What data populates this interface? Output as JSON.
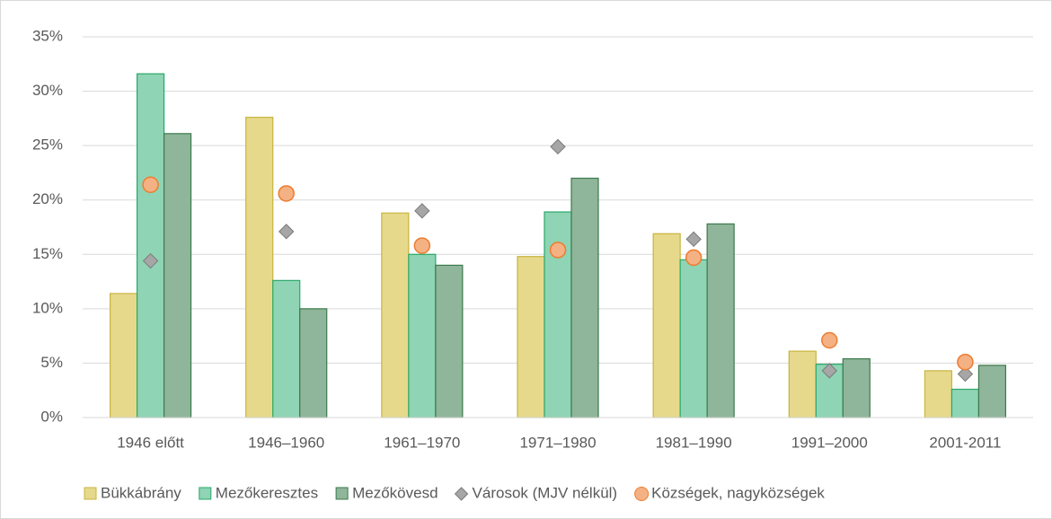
{
  "chart_data": {
    "type": "bar",
    "categories": [
      "1946 előtt",
      "1946–1960",
      "1961–1970",
      "1971–1980",
      "1981–1990",
      "1991–2000",
      "2001-2011"
    ],
    "series": [
      {
        "name": "Bükkábrány",
        "type": "bar",
        "color": "#e6d98c",
        "stroke": "#c9b43e",
        "values": [
          11.4,
          27.6,
          18.8,
          14.8,
          16.9,
          6.1,
          4.3
        ]
      },
      {
        "name": "Mezőkeresztes",
        "type": "bar",
        "color": "#8fd4b4",
        "stroke": "#2aa86a",
        "values": [
          31.6,
          12.6,
          15.0,
          18.9,
          14.5,
          4.9,
          2.6
        ]
      },
      {
        "name": "Mezőkövesd",
        "type": "bar",
        "color": "#8fb59a",
        "stroke": "#3d7a4d",
        "values": [
          26.1,
          10.0,
          14.0,
          22.0,
          17.8,
          5.4,
          4.8
        ]
      },
      {
        "name": "Városok (MJV nélkül)",
        "type": "diamond",
        "color": "#a6a6a6",
        "stroke": "#7a7a7a",
        "values": [
          14.4,
          17.1,
          19.0,
          24.9,
          16.4,
          4.3,
          4.0
        ]
      },
      {
        "name": "Községek, nagyközségek",
        "type": "circle",
        "color": "#f4b183",
        "stroke": "#ed7d31",
        "values": [
          21.4,
          20.6,
          15.8,
          15.4,
          14.7,
          7.1,
          5.1
        ]
      }
    ],
    "ylim": [
      0,
      35
    ],
    "yticks": [
      {
        "value": 0,
        "label": "0%"
      },
      {
        "value": 5,
        "label": "5%"
      },
      {
        "value": 10,
        "label": "10%"
      },
      {
        "value": 15,
        "label": "15%"
      },
      {
        "value": 20,
        "label": "20%"
      },
      {
        "value": 25,
        "label": "25%"
      },
      {
        "value": 30,
        "label": "30%"
      },
      {
        "value": 35,
        "label": "35%"
      }
    ],
    "grid": true,
    "legend": "bottom"
  }
}
